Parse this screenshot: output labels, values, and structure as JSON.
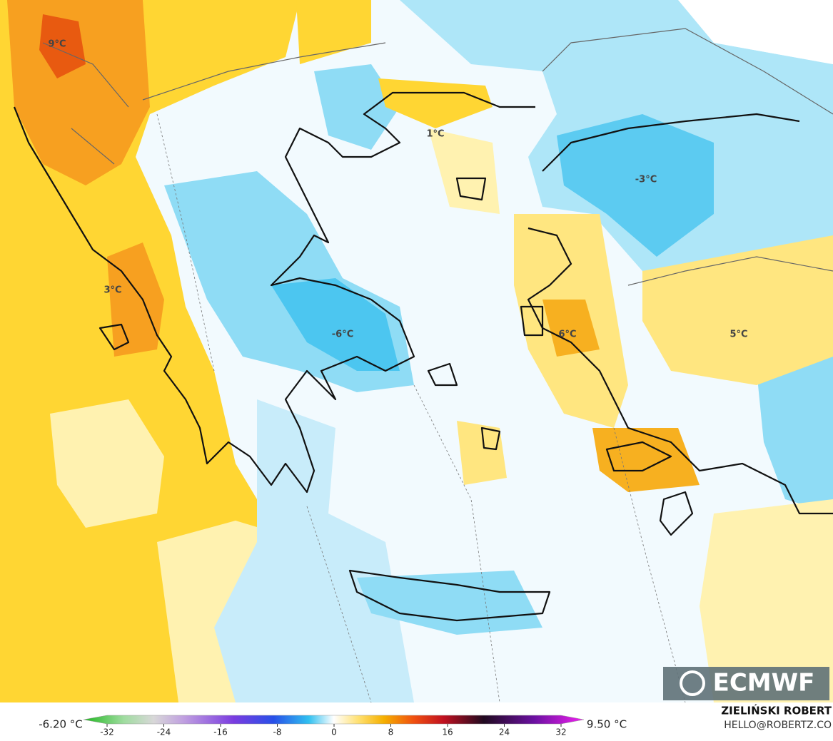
{
  "map": {
    "labels": [
      "9°C",
      "1°C",
      "-3°C",
      "3°C",
      "-6°C",
      "6°C",
      "5°C"
    ],
    "logo": "ECMWF"
  },
  "colorbar": {
    "min_label": "-6.20 °C",
    "max_label": "9.50 °C",
    "ticks": [
      -32,
      -24,
      -16,
      -8,
      0,
      8,
      16,
      24,
      32
    ]
  },
  "footer": {
    "author": "ZIELIŃSKI ROBERT",
    "contact": "HELLO@ROBERTZ.CO"
  }
}
